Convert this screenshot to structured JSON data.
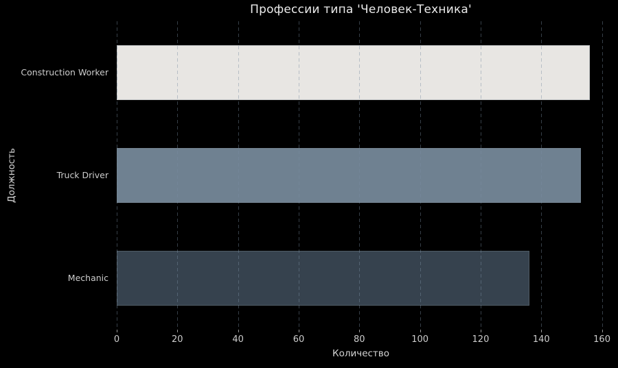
{
  "chart_data": {
    "type": "bar",
    "orientation": "horizontal",
    "title": "Профессии типа 'Человек-Техника'",
    "xlabel": "Количество",
    "ylabel": "Должность",
    "categories": [
      "Construction Worker",
      "Truck Driver",
      "Mechanic"
    ],
    "values": [
      156,
      153,
      136
    ],
    "bar_colors": [
      "#e8e6e3",
      "#6f8191",
      "#36424e"
    ],
    "xlim": [
      0,
      161
    ],
    "xticks": [
      0,
      20,
      40,
      60,
      80,
      100,
      120,
      140,
      160
    ],
    "grid": "vertical-dashed",
    "legend": "none",
    "colors": {
      "background": "#000000",
      "text": "#cdcdcd",
      "grid": "rgba(120,140,160,0.45)",
      "tick_mark": "#9a9a9a",
      "bar_edge": "rgba(130,140,150,0.35)"
    }
  }
}
